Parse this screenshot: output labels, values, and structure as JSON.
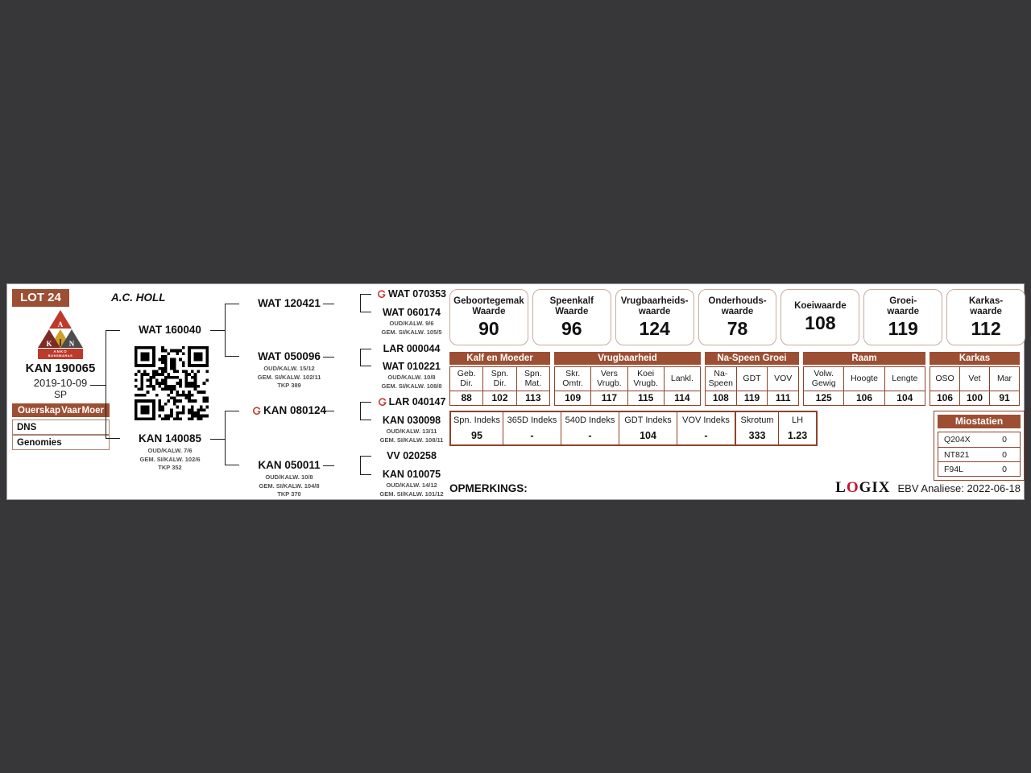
{
  "page": {
    "lot": "LOT 24",
    "owner": "A.C. HOLL",
    "opmerkings": "OPMERKINGS:",
    "logix_l": "L",
    "logix_o": "O",
    "logix_gix": "GIX",
    "analysis": "EBV Analiese: 2022-06-18"
  },
  "colors": {
    "accent_brown": "#9d4f33",
    "brand_red": "#c0392b"
  },
  "animal": {
    "id": "KAN 190065",
    "birth_date": "2019-10-09",
    "herd_code": "SP"
  },
  "logo": {
    "letter_a": "A",
    "letter_k": "K",
    "letter_n": "N",
    "banner_line1": "ANKO",
    "banner_line2": "BONSMARAS"
  },
  "parentage": {
    "col1": "Ouerskap",
    "col2": "Vaar",
    "col3": "Moer",
    "row1": "DNS",
    "row2": "Genomies"
  },
  "pedigree": {
    "sire": {
      "id": "WAT 160040",
      "sub": ""
    },
    "dam": {
      "id": "KAN 140085",
      "sub": "OUD/KALW. 7/6\nGEM. SI/KALW. 102/6\nTKP 352"
    },
    "gen2": [
      {
        "id": "WAT 120421",
        "sub": ""
      },
      {
        "id": "WAT 050096",
        "sub": "OUD/KALW. 15/12\nGEM. SI/KALW. 102/11\nTKP 389"
      },
      {
        "id": "KAN 080124",
        "sub": ""
      },
      {
        "id": "KAN 050011",
        "sub": "OUD/KALW. 10/8\nGEM. SI/KALW. 104/8\nTKP 370"
      }
    ],
    "gen3": [
      {
        "id": "WAT 070353",
        "sub": ""
      },
      {
        "id": "WAT 060174",
        "sub": "OUD/KALW. 9/6\nGEM. SI/KALW. 105/5"
      },
      {
        "id": "LAR 000044",
        "sub": ""
      },
      {
        "id": "WAT 010221",
        "sub": "OUD/KALW. 10/8\nGEM. SI/KALW. 108/8"
      },
      {
        "id": "LAR 040147",
        "sub": ""
      },
      {
        "id": "KAN 030098",
        "sub": "OUD/KALW. 13/11\nGEM. SI/KALW. 108/11"
      },
      {
        "id": "VV 020258",
        "sub": ""
      },
      {
        "id": "KAN 010075",
        "sub": "OUD/KALW. 14/12\nGEM. SI/KALW. 101/12"
      }
    ]
  },
  "value_boxes": [
    {
      "label": "Geboortegemak\nWaarde",
      "value": "90"
    },
    {
      "label": "Speenkalf\nWaarde",
      "value": "96"
    },
    {
      "label": "Vrugbaarheids-\nwaarde",
      "value": "124"
    },
    {
      "label": "Onderhouds-\nwaarde",
      "value": "78"
    },
    {
      "label": "Koeiwaarde",
      "value": "108"
    },
    {
      "label": "Groei-\nwaarde",
      "value": "119"
    },
    {
      "label": "Karkas-\nwaarde",
      "value": "112"
    }
  ],
  "ebv": {
    "groups": [
      {
        "name": "Kalf en Moeder",
        "cols": [
          {
            "h": "Geb.\nDir.",
            "v": "88"
          },
          {
            "h": "Spn.\nDir.",
            "v": "102"
          },
          {
            "h": "Spn.\nMat.",
            "v": "113"
          }
        ]
      },
      {
        "name": "Vrugbaarheid",
        "cols": [
          {
            "h": "Skr.\nOmtr.",
            "v": "109"
          },
          {
            "h": "Vers\nVrugb.",
            "v": "117"
          },
          {
            "h": "Koei\nVrugb.",
            "v": "115"
          },
          {
            "h": "Lankl.",
            "v": "114"
          }
        ]
      },
      {
        "name": "Na-Speen Groei",
        "cols": [
          {
            "h": "Na-\nSpeen",
            "v": "108"
          },
          {
            "h": "GDT",
            "v": "119"
          },
          {
            "h": "VOV",
            "v": "111"
          }
        ]
      },
      {
        "name": "Raam",
        "cols": [
          {
            "h": "Volw.\nGewig",
            "v": "125"
          },
          {
            "h": "Hoogte",
            "v": "106"
          },
          {
            "h": "Lengte",
            "v": "104"
          }
        ]
      },
      {
        "name": "Karkas",
        "cols": [
          {
            "h": "OSO",
            "v": "106"
          },
          {
            "h": "Vet",
            "v": "100"
          },
          {
            "h": "Mar",
            "v": "91"
          }
        ]
      }
    ]
  },
  "indexes": {
    "cols": [
      {
        "h": "Spn. Indeks",
        "v": "95"
      },
      {
        "h": "365D Indeks",
        "v": "-"
      },
      {
        "h": "540D Indeks",
        "v": "-"
      },
      {
        "h": "GDT Indeks",
        "v": "104"
      },
      {
        "h": "VOV Indeks",
        "v": "-"
      },
      {
        "h": "Skrotum",
        "v": "333"
      },
      {
        "h": "LH",
        "v": "1.23"
      }
    ]
  },
  "miostatien": {
    "title": "Miostatien",
    "rows": [
      {
        "name": "Q204X",
        "value": "0"
      },
      {
        "name": "NT821",
        "value": "0"
      },
      {
        "name": "F94L",
        "value": "0"
      }
    ]
  }
}
